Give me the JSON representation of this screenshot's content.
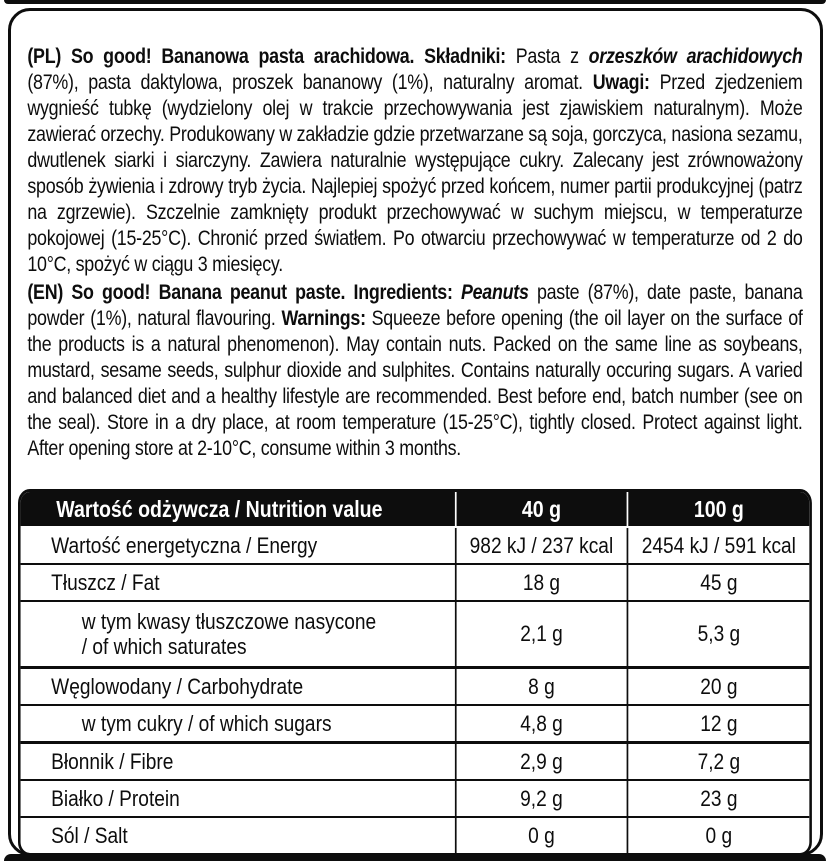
{
  "pl": {
    "lead": "(PL) So good! Bananowa pasta arachidowa. Składniki: ",
    "plain1": "Pasta z ",
    "ingredient_italic": "orzeszków arachidowych",
    "plain2": " (87%), pasta daktylowa, proszek bananowy (1%), naturalny aromat. ",
    "warn_label": "Uwagi: ",
    "warn_text": "Przed zjedzeniem wygnieść tubkę (wydzielony olej w trakcie przechowywania jest zjawiskiem naturalnym). Może zawierać orzechy. Produkowany w zakładzie gdzie przetwarzane są soja, gorczyca, nasiona sezamu, dwutlenek siarki i siarczyny. Zawiera naturalnie występujące cukry. Zalecany jest zrównoważony sposób żywienia i zdrowy tryb życia. Najlepiej spożyć przed końcem, numer partii produkcyjnej (patrz na zgrzewie). Szczelnie zamknięty produkt przechowywać w suchym miejscu, w temperaturze pokojowej (15-25°C). Chronić przed światłem. Po otwarciu przechowywać w temperaturze od 2 do 10°C, spożyć w ciągu 3 miesięcy."
  },
  "en": {
    "lead": "(EN) So good! Banana peanut paste. Ingredients: ",
    "ingredient_italic": "Peanuts",
    "plain1": " paste (87%), date paste, banana powder (1%), natural flavouring. ",
    "warn_label": "Warnings: ",
    "warn_text": "Squeeze before opening (the oil layer on the surface of the products is a natural phenomenon). May contain nuts. Packed on the same line as soybeans, mustard, sesame seeds, sulphur dioxide and sulphites. Contains naturally occuring sugars. A varied and balanced diet and a healthy lifestyle are recommended. Best before end, batch number (see on the seal). Store in a dry place, at room temperature (15-25°C), tightly closed. Protect against light. After opening store at 2-10°C, consume within 3 months."
  },
  "table": {
    "header": {
      "name": "Wartość odżywcza / Nutrition value",
      "col40": "40 g",
      "col100": "100 g"
    },
    "rows": [
      {
        "label": "Wartość energetyczna / Energy",
        "per40": "982 kJ / 237 kcal",
        "per100": "2454 kJ / 591 kcal"
      },
      {
        "label": "Tłuszcz / Fat",
        "per40": "18 g",
        "per100": "45 g"
      },
      {
        "label": "w tym kwasy tłuszczowe nasycone\n/ of which saturates",
        "per40": "2,1 g",
        "per100": "5,3 g"
      },
      {
        "label": "Węglowodany / Carbohydrate",
        "per40": "8 g",
        "per100": "20 g"
      },
      {
        "label": "w tym cukry / of which sugars",
        "per40": "4,8 g",
        "per100": "12 g"
      },
      {
        "label": "Błonnik / Fibre",
        "per40": "2,9 g",
        "per100": "7,2 g"
      },
      {
        "label": "Białko / Protein",
        "per40": "9,2 g",
        "per100": "23 g"
      },
      {
        "label": "Sól / Salt",
        "per40": "0 g",
        "per100": "0 g"
      }
    ]
  },
  "colors": {
    "ink": "#0d0d0d",
    "paper": "#ffffff"
  }
}
